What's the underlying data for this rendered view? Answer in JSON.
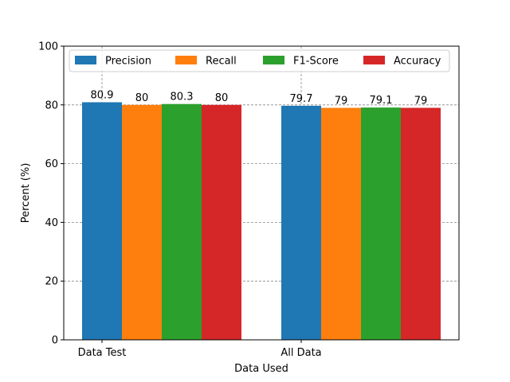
{
  "chart_data": {
    "type": "bar",
    "title": "",
    "xlabel": "Data Used",
    "ylabel": "Percent (%)",
    "categories": [
      "Data Test",
      "All Data"
    ],
    "ylim": [
      0,
      100
    ],
    "yticks": [
      0,
      20,
      40,
      60,
      80,
      100
    ],
    "grid": true,
    "legend_position": "top",
    "series": [
      {
        "name": "Precision",
        "values": [
          80.9,
          79.7
        ],
        "labels": [
          "80.9",
          "79.7"
        ],
        "color": "#1f77b4"
      },
      {
        "name": "Recall",
        "values": [
          80,
          79
        ],
        "labels": [
          "80",
          "79"
        ],
        "color": "#ff7f0e"
      },
      {
        "name": "F1-Score",
        "values": [
          80.3,
          79.1
        ],
        "labels": [
          "80.3",
          "79.1"
        ],
        "color": "#2ca02c"
      },
      {
        "name": "Accuracy",
        "values": [
          80,
          79
        ],
        "labels": [
          "80",
          "79"
        ],
        "color": "#d62728"
      }
    ]
  }
}
